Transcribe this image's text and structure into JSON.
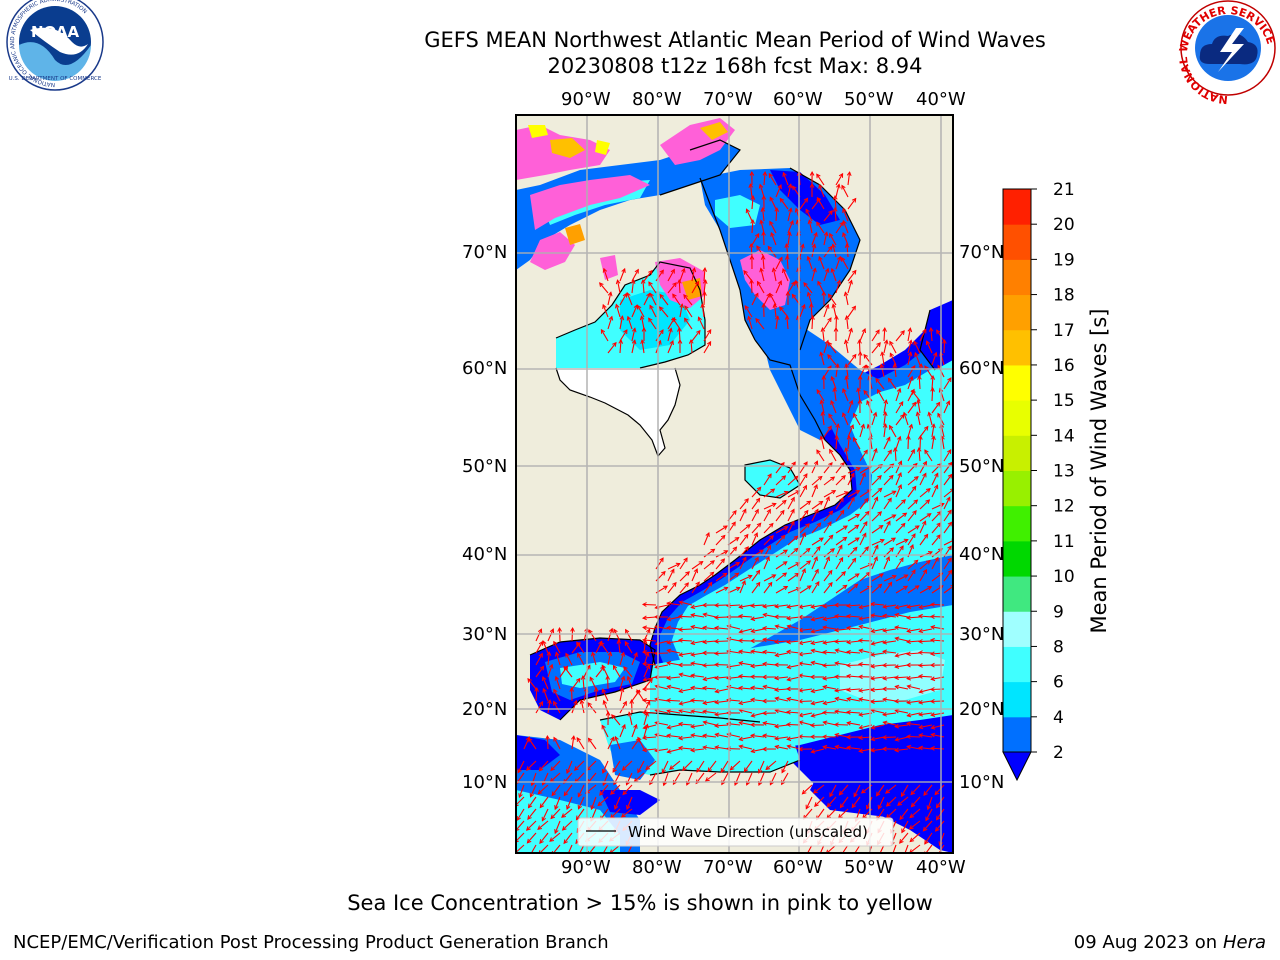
{
  "title": {
    "line1": "GEFS MEAN Northwest Atlantic Mean Period of Wind Waves",
    "line2": "20230808 t12z 168h fcst   Max: 8.94"
  },
  "map": {
    "lon_ticks": [
      "90°W",
      "80°W",
      "70°W",
      "60°W",
      "50°W",
      "40°W"
    ],
    "lat_ticks": [
      "70°N",
      "60°N",
      "50°N",
      "40°N",
      "30°N",
      "20°N",
      "10°N"
    ],
    "legend_label": "Wind Wave Direction (unscaled)"
  },
  "colorbar": {
    "label": "Mean Period of Wind Waves [s]",
    "ticks": [
      "2",
      "4",
      "6",
      "8",
      "9",
      "10",
      "11",
      "12",
      "13",
      "14",
      "15",
      "16",
      "17",
      "18",
      "19",
      "20",
      "21"
    ],
    "colors": [
      "#0070ff",
      "#00e5ff",
      "#40ffff",
      "#a0ffff",
      "#40e880",
      "#00d800",
      "#40f000",
      "#98f000",
      "#c8f000",
      "#e8ff00",
      "#ffff00",
      "#ffc000",
      "#ffa000",
      "#ff8000",
      "#ff5000",
      "#ff2000"
    ],
    "under_color": "#0000ff",
    "over_color": "#ff0000"
  },
  "logos": {
    "noaa": {
      "text": "NOAA",
      "ring_text": "NATIONAL OCEANIC AND ATMOSPHERIC ADMINISTRATION",
      "dept_text": "U.S. DEPARTMENT OF COMMERCE"
    },
    "nws": {
      "ring_text": "NATIONAL WEATHER SERVICE"
    }
  },
  "footer": {
    "note": "Sea Ice Concentration > 15% is shown in pink to yellow",
    "credit": "NCEP/EMC/Verification Post Processing Product Generation Branch",
    "date": "09 Aug 2023 on",
    "machine": "Hera"
  },
  "colors": {
    "land": "#efeddc",
    "ocean_deep": "#0000ff",
    "ocean_blue": "#0070ff",
    "ocean_cyan": "#40ffff",
    "arrow": "#ff0000",
    "ice_pink": "#ff60d8",
    "grid": "#b0b0b0"
  }
}
